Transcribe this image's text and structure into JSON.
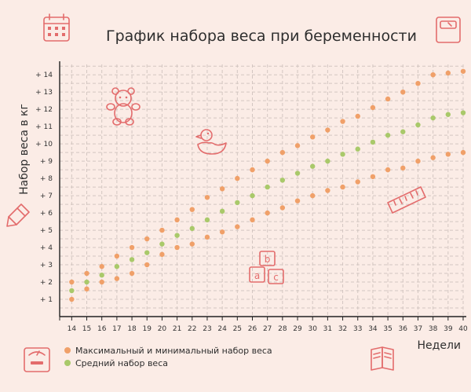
{
  "chart_data": {
    "type": "scatter",
    "title": "График набора веса при беременности",
    "xlabel": "Недели",
    "ylabel": "Набор веса в кг",
    "x": [
      14,
      15,
      16,
      17,
      18,
      19,
      20,
      21,
      22,
      23,
      24,
      25,
      26,
      27,
      28,
      29,
      30,
      31,
      32,
      33,
      34,
      35,
      36,
      37,
      38,
      39,
      40
    ],
    "x_tick_labels": [
      "14",
      "15",
      "16",
      "17",
      "18",
      "19",
      "20",
      "21",
      "22",
      "23",
      "24",
      "25",
      "26",
      "27",
      "28",
      "29",
      "30",
      "31",
      "32",
      "33",
      "34",
      "35",
      "36",
      "37",
      "38",
      "39",
      "40"
    ],
    "y_tick_labels": [
      "+ 1",
      "+ 2",
      "+ 3",
      "+ 4",
      "+ 5",
      "+ 6",
      "+ 7",
      "+ 8",
      "+ 9",
      "+ 10",
      "+ 11",
      "+ 12",
      "+ 13",
      "+ 14"
    ],
    "xlim": [
      13.2,
      40
    ],
    "ylim": [
      0,
      14.6
    ],
    "grid": true,
    "series": [
      {
        "name": "Максимальный и минимальный набор веса",
        "color": "#f0a069",
        "points": [
          [
            14,
            2.0
          ],
          [
            15,
            2.5
          ],
          [
            16,
            2.9
          ],
          [
            17,
            3.5
          ],
          [
            18,
            4.0
          ],
          [
            19,
            4.5
          ],
          [
            20,
            5.0
          ],
          [
            21,
            5.6
          ],
          [
            22,
            6.2
          ],
          [
            23,
            6.9
          ],
          [
            24,
            7.4
          ],
          [
            25,
            8.0
          ],
          [
            26,
            8.5
          ],
          [
            27,
            9.0
          ],
          [
            28,
            9.5
          ],
          [
            29,
            9.9
          ],
          [
            30,
            10.4
          ],
          [
            31,
            10.8
          ],
          [
            32,
            11.3
          ],
          [
            33,
            11.6
          ],
          [
            34,
            12.1
          ],
          [
            35,
            12.6
          ],
          [
            36,
            13.0
          ],
          [
            37,
            13.5
          ],
          [
            38,
            14.0
          ],
          [
            39,
            14.1
          ],
          [
            40,
            14.2
          ],
          [
            14,
            1.0
          ],
          [
            15,
            1.6
          ],
          [
            16,
            2.0
          ],
          [
            17,
            2.2
          ],
          [
            18,
            2.5
          ],
          [
            19,
            3.0
          ],
          [
            20,
            3.6
          ],
          [
            21,
            4.0
          ],
          [
            22,
            4.2
          ],
          [
            23,
            4.6
          ],
          [
            24,
            4.9
          ],
          [
            25,
            5.2
          ],
          [
            26,
            5.6
          ],
          [
            27,
            6.0
          ],
          [
            28,
            6.3
          ],
          [
            29,
            6.7
          ],
          [
            30,
            7.0
          ],
          [
            31,
            7.3
          ],
          [
            32,
            7.5
          ],
          [
            33,
            7.8
          ],
          [
            34,
            8.1
          ],
          [
            35,
            8.5
          ],
          [
            36,
            8.6
          ],
          [
            37,
            9.0
          ],
          [
            38,
            9.2
          ],
          [
            39,
            9.4
          ],
          [
            40,
            9.5
          ]
        ]
      },
      {
        "name": "Средний набор веса",
        "color": "#a9c96a",
        "points": [
          [
            14,
            1.5
          ],
          [
            15,
            2.0
          ],
          [
            16,
            2.4
          ],
          [
            17,
            2.9
          ],
          [
            18,
            3.3
          ],
          [
            19,
            3.7
          ],
          [
            20,
            4.2
          ],
          [
            21,
            4.7
          ],
          [
            22,
            5.1
          ],
          [
            23,
            5.6
          ],
          [
            24,
            6.1
          ],
          [
            25,
            6.6
          ],
          [
            26,
            7.0
          ],
          [
            27,
            7.5
          ],
          [
            28,
            7.9
          ],
          [
            29,
            8.3
          ],
          [
            30,
            8.7
          ],
          [
            31,
            9.0
          ],
          [
            32,
            9.4
          ],
          [
            33,
            9.7
          ],
          [
            34,
            10.1
          ],
          [
            35,
            10.5
          ],
          [
            36,
            10.7
          ],
          [
            37,
            11.1
          ],
          [
            38,
            11.5
          ],
          [
            39,
            11.7
          ],
          [
            40,
            11.8
          ]
        ]
      }
    ],
    "legend": {
      "placement": "bottom-left",
      "entries": [
        "Максимальный и минимальный набор веса",
        "Средний набор веса"
      ]
    }
  },
  "icons": [
    "calendar-icon",
    "scale-icon",
    "teddy-bear-icon",
    "rubber-duck-icon",
    "pencil-icon",
    "ruler-icon",
    "abc-blocks-icon",
    "bathroom-scale-icon",
    "book-icon"
  ],
  "colors": {
    "background": "#fbece6",
    "decor": "#e36c6c",
    "axis": "#222222"
  }
}
